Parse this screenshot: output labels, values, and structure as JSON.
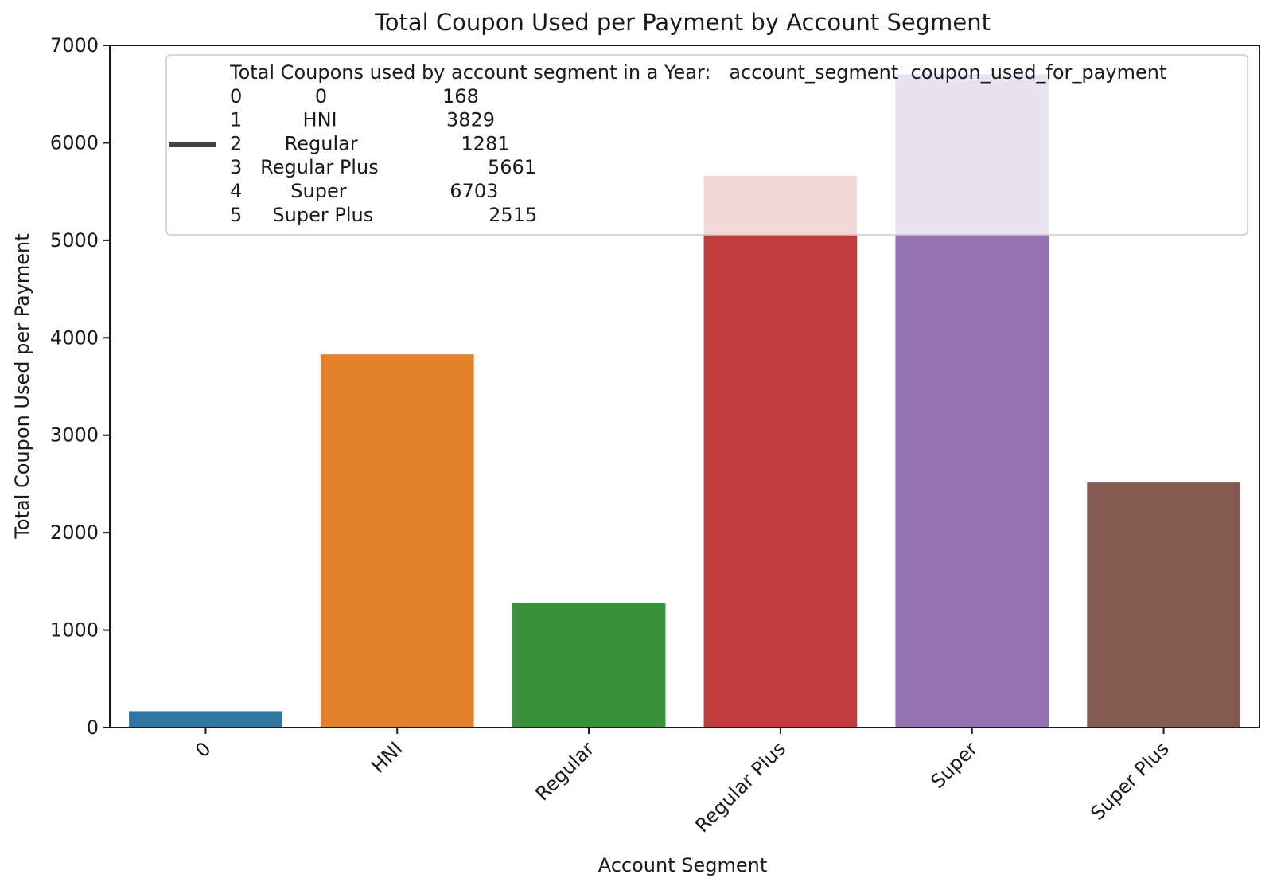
{
  "chart_data": {
    "type": "bar",
    "title": "Total Coupon Used per Payment by Account Segment",
    "xlabel": "Account Segment",
    "ylabel": "Total Coupon Used per Payment",
    "categories": [
      "0",
      "HNI",
      "Regular",
      "Regular Plus",
      "Super",
      "Super Plus"
    ],
    "values": [
      168,
      3829,
      1281,
      5661,
      6703,
      2515
    ],
    "ylim": [
      0,
      7000
    ],
    "yticks": [
      "0",
      "1000",
      "2000",
      "3000",
      "4000",
      "5000",
      "6000",
      "7000"
    ],
    "colors": [
      "#1f77b4",
      "#ff7f0e",
      "#2ca02c",
      "#d62728",
      "#9467bd",
      "#8c564b"
    ],
    "bar_colors": [
      "#3274a1",
      "#e1812c",
      "#3a923a",
      "#c03d3e",
      "#9372b2",
      "#845b53"
    ],
    "grid": false,
    "legend": {
      "placement": "upper right",
      "line_color": "#444444",
      "lines": [
        "Total Coupons used by account segment in a Year:   account_segment  coupon_used_for_payment",
        "0            0                   168",
        "1          HNI                  3829",
        "2       Regular                 1281",
        "3   Regular Plus                  5661",
        "4        Super                 6703",
        "5     Super Plus                   2515"
      ]
    }
  }
}
